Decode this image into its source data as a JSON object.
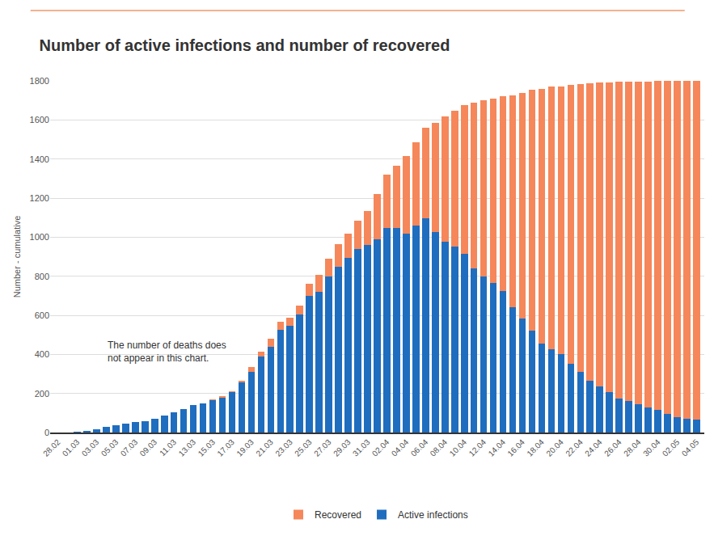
{
  "chart_data": {
    "type": "bar",
    "title": "Number of active infections and number of recovered",
    "y_label": "Number - cumulative",
    "annotation": [
      "The number of deaths does",
      "not appear in this chart."
    ],
    "categories": [
      "28.02",
      null,
      "01.03",
      null,
      "03.03",
      null,
      "05.03",
      null,
      "07.03",
      null,
      "09.03",
      null,
      "11.03",
      null,
      "13.03",
      null,
      "15.03",
      null,
      "17.03",
      null,
      "19.03",
      null,
      "21.03",
      null,
      "23.03",
      null,
      "25.03",
      null,
      "27.03",
      null,
      "29.03",
      null,
      "31.03",
      null,
      "02.04",
      null,
      "04.04",
      null,
      "06.04",
      null,
      "08.04",
      null,
      "10.04",
      null,
      "12.04",
      null,
      "14.04",
      null,
      "16.04",
      null,
      "18.04",
      null,
      "20.04",
      null,
      "22.04",
      null,
      "24.04",
      null,
      "26.04",
      null,
      "28.04",
      null,
      "30.04",
      null,
      "02.05",
      null,
      "04.05"
    ],
    "series": [
      {
        "name": "Active infections",
        "color": "#1f6dbf",
        "values": [
          1,
          2,
          5,
          10,
          18,
          30,
          38,
          45,
          52,
          60,
          70,
          85,
          105,
          120,
          140,
          150,
          165,
          180,
          205,
          255,
          310,
          390,
          440,
          525,
          545,
          605,
          700,
          720,
          800,
          850,
          895,
          940,
          960,
          990,
          1045,
          1045,
          1020,
          1060,
          1095,
          1025,
          975,
          950,
          915,
          840,
          800,
          765,
          725,
          640,
          585,
          520,
          455,
          425,
          400,
          350,
          310,
          265,
          235,
          205,
          175,
          160,
          145,
          130,
          115,
          95,
          80,
          72,
          65
        ]
      },
      {
        "name": "Recovered",
        "color": "#f5875a",
        "values": [
          0,
          0,
          0,
          0,
          0,
          0,
          0,
          0,
          0,
          0,
          0,
          0,
          0,
          0,
          0,
          0,
          5,
          5,
          5,
          10,
          25,
          25,
          38,
          43,
          43,
          45,
          60,
          85,
          90,
          113,
          125,
          146,
          175,
          230,
          274,
          319,
          397,
          426,
          467,
          561,
          641,
          698,
          760,
          849,
          901,
          946,
          995,
          1087,
          1154,
          1234,
          1305,
          1346,
          1373,
          1428,
          1475,
          1524,
          1555,
          1587,
          1620,
          1635,
          1652,
          1667,
          1683,
          1703,
          1719,
          1727,
          1734
        ]
      }
    ],
    "ylim": [
      0,
      1800
    ],
    "yticks": [
      0,
      200,
      400,
      600,
      800,
      1000,
      1200,
      1400,
      1600,
      1800
    ],
    "stacked": true,
    "grid": true,
    "legend": "bottom"
  }
}
